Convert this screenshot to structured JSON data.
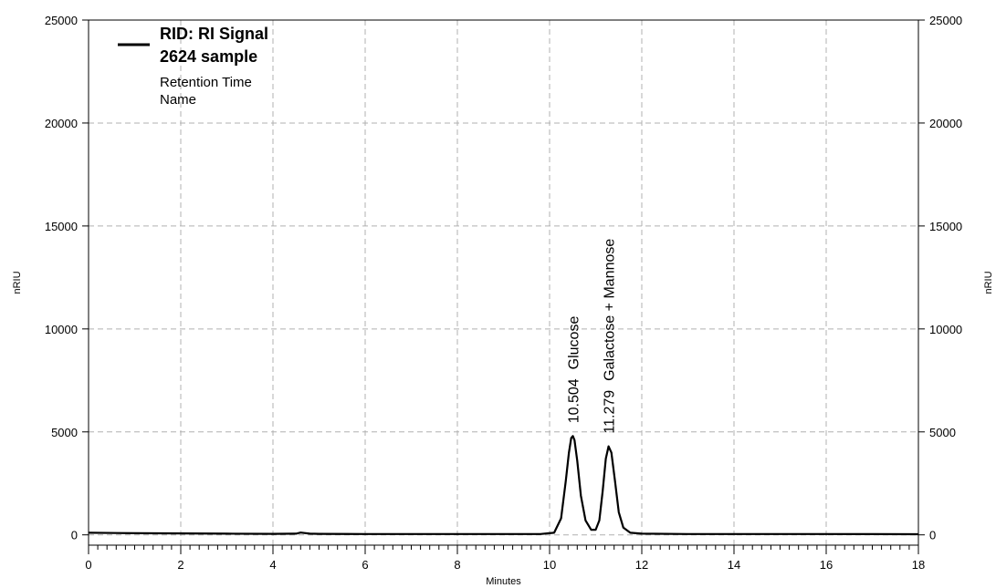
{
  "chart_data": {
    "type": "line",
    "xlabel": "Minutes",
    "ylabel_left": "nRIU",
    "ylabel_right": "nRIU",
    "xlim": [
      0,
      18
    ],
    "ylim": [
      -500,
      25000
    ],
    "x_ticks": [
      0,
      2,
      4,
      6,
      8,
      10,
      12,
      14,
      16,
      18
    ],
    "x_tick_labels": [
      "0",
      "2",
      "4",
      "6",
      "8",
      "10",
      "12",
      "14",
      "16",
      "18"
    ],
    "y_ticks": [
      0,
      5000,
      10000,
      15000,
      20000,
      25000
    ],
    "y_tick_labels": [
      "0",
      "5000",
      "10000",
      "15000",
      "20000",
      "25000"
    ],
    "grid": true,
    "legend": {
      "position": "top-left",
      "title_lines": [
        "RID: RI Signal",
        "2624 sample"
      ],
      "fields": [
        "Retention Time",
        "Name"
      ]
    },
    "series": [
      {
        "name": "RID: RI Signal 2624 sample",
        "color": "#000000",
        "x": [
          0,
          1,
          2,
          3,
          4,
          4.5,
          4.6,
          4.8,
          5,
          6,
          7,
          8,
          9,
          9.8,
          10.1,
          10.25,
          10.35,
          10.42,
          10.47,
          10.504,
          10.54,
          10.6,
          10.68,
          10.78,
          10.9,
          11.0,
          11.08,
          11.15,
          11.22,
          11.279,
          11.34,
          11.42,
          11.5,
          11.6,
          11.75,
          12,
          13,
          14,
          15,
          16,
          17,
          18
        ],
        "y": [
          100,
          80,
          70,
          60,
          50,
          60,
          110,
          60,
          50,
          40,
          40,
          40,
          40,
          40,
          100,
          800,
          2600,
          4000,
          4700,
          4800,
          4600,
          3600,
          1900,
          700,
          250,
          250,
          700,
          2100,
          3700,
          4300,
          4000,
          2600,
          1100,
          350,
          100,
          60,
          40,
          40,
          40,
          40,
          35,
          30
        ]
      }
    ],
    "peaks": [
      {
        "retention_time": "10.504",
        "name": "Glucose",
        "x": 10.504,
        "y": 4800
      },
      {
        "retention_time": "11.279",
        "name": "Galactose + Mannose",
        "x": 11.279,
        "y": 4300
      }
    ]
  }
}
